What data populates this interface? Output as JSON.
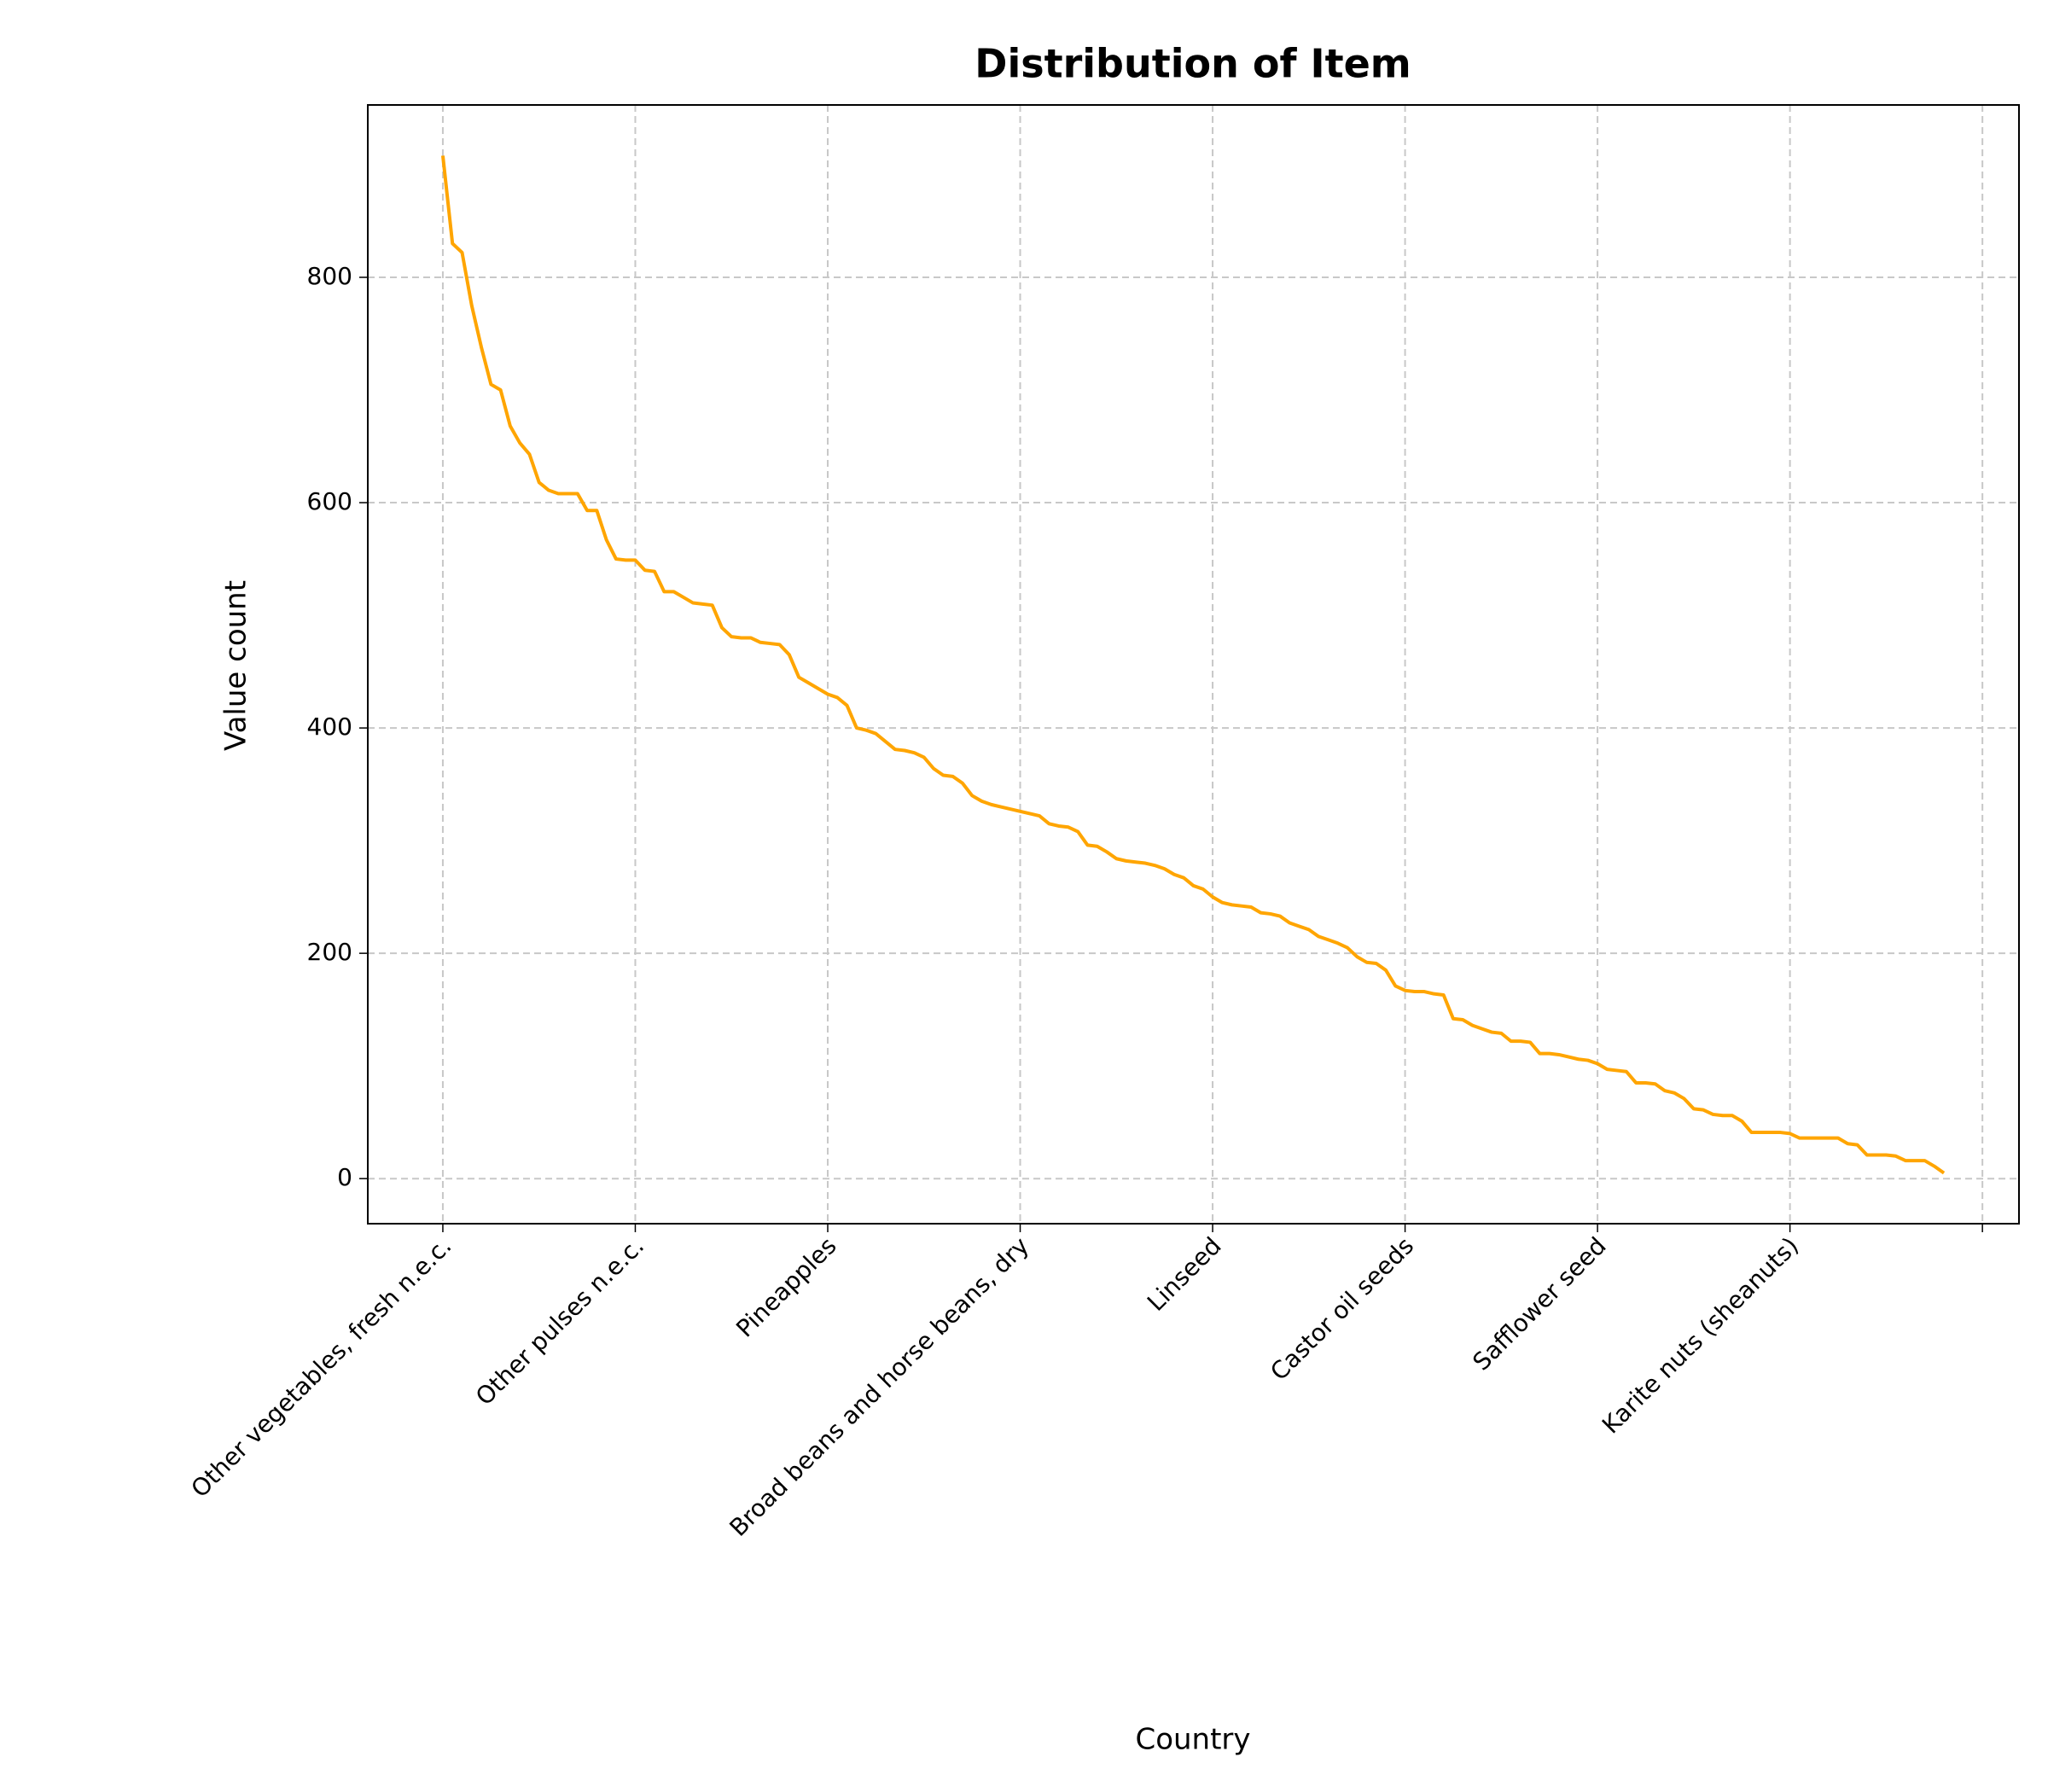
{
  "chart_data": {
    "type": "line",
    "title": "Distribution of Item",
    "x_label": "Country",
    "y_label": "Value count",
    "categories": [
      "Other vegetables, fresh n.e.c.",
      null,
      null,
      null,
      null,
      null,
      null,
      null,
      null,
      null,
      null,
      null,
      null,
      null,
      null,
      null,
      null,
      null,
      null,
      null,
      "Other pulses n.e.c.",
      null,
      null,
      null,
      null,
      null,
      null,
      null,
      null,
      null,
      null,
      null,
      null,
      null,
      null,
      null,
      null,
      null,
      null,
      null,
      "Pineapples",
      null,
      null,
      null,
      null,
      null,
      null,
      null,
      null,
      null,
      null,
      null,
      null,
      null,
      null,
      null,
      null,
      null,
      null,
      null,
      "Broad beans and horse beans, dry",
      null,
      null,
      null,
      null,
      null,
      null,
      null,
      null,
      null,
      null,
      null,
      null,
      null,
      null,
      null,
      null,
      null,
      null,
      null,
      "Linseed",
      null,
      null,
      null,
      null,
      null,
      null,
      null,
      null,
      null,
      null,
      null,
      null,
      null,
      null,
      null,
      null,
      null,
      null,
      null,
      "Castor oil seeds",
      null,
      null,
      null,
      null,
      null,
      null,
      null,
      null,
      null,
      null,
      null,
      null,
      null,
      null,
      null,
      null,
      null,
      null,
      null,
      "Safflower seed",
      null,
      null,
      null,
      null,
      null,
      null,
      null,
      null,
      null,
      null,
      null,
      null,
      null,
      null,
      null,
      null,
      null,
      null,
      null,
      "Karite nuts (sheanuts)",
      null,
      null,
      null,
      null,
      null,
      null,
      null,
      null,
      null,
      null,
      null,
      null,
      null,
      null,
      null,
      null
    ],
    "series": [
      {
        "name": "Value count",
        "color": "#ffa500",
        "values": [
          908,
          830,
          822,
          775,
          738,
          705,
          700,
          668,
          653,
          643,
          618,
          611,
          608,
          608,
          608,
          593,
          593,
          567,
          550,
          549,
          549,
          540,
          539,
          521,
          521,
          516,
          511,
          510,
          509,
          489,
          481,
          480,
          480,
          476,
          475,
          474,
          465,
          445,
          440,
          435,
          430,
          427,
          420,
          400,
          398,
          395,
          388,
          381,
          380,
          378,
          374,
          364,
          358,
          357,
          351,
          340,
          335,
          332,
          330,
          328,
          326,
          324,
          322,
          315,
          313,
          312,
          308,
          296,
          295,
          290,
          284,
          282,
          281,
          280,
          278,
          275,
          270,
          267,
          260,
          257,
          250,
          245,
          243,
          242,
          241,
          236,
          235,
          233,
          227,
          224,
          221,
          215,
          212,
          209,
          205,
          197,
          192,
          191,
          185,
          171,
          167,
          166,
          166,
          164,
          163,
          142,
          141,
          136,
          133,
          130,
          129,
          122,
          122,
          121,
          111,
          111,
          110,
          108,
          106,
          105,
          102,
          97,
          96,
          95,
          85,
          85,
          84,
          78,
          76,
          71,
          62,
          61,
          57,
          56,
          56,
          51,
          41,
          41,
          41,
          41,
          40,
          36,
          36,
          36,
          36,
          36,
          31,
          30,
          21,
          21,
          21,
          20,
          16,
          16,
          16,
          11,
          5
        ]
      }
    ],
    "xlim": [
      -7.8,
      163.8
    ],
    "xticks": [
      0,
      20,
      40,
      60,
      80,
      100,
      120,
      140,
      160
    ],
    "ylim": [
      -40,
      953
    ],
    "yticks": [
      0,
      200,
      400,
      600,
      800
    ],
    "grid": true
  }
}
